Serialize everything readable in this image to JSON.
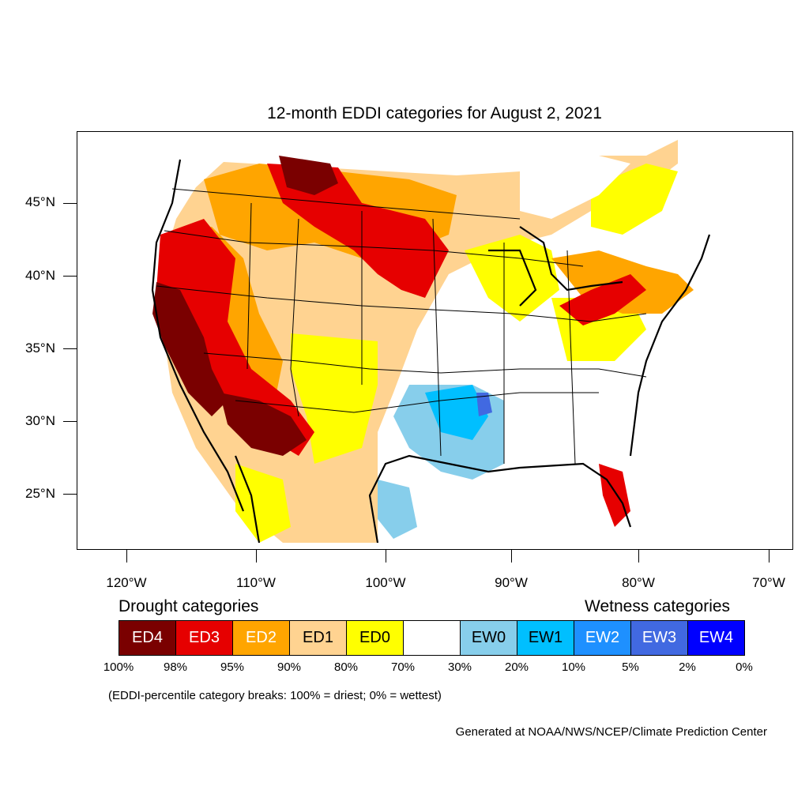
{
  "title": "12-month EDDI categories for August 2, 2021",
  "lat_labels": [
    "45°N",
    "40°N",
    "35°N",
    "30°N",
    "25°N"
  ],
  "lon_labels": [
    "120°W",
    "110°W",
    "100°W",
    "90°W",
    "80°W",
    "70°W"
  ],
  "legend": {
    "drought_title": "Drought categories",
    "wetness_title": "Wetness categories",
    "categories": [
      {
        "label": "ED4",
        "color": "#7a0000",
        "text_color": "#ffffff"
      },
      {
        "label": "ED3",
        "color": "#e60000",
        "text_color": "#ffffff"
      },
      {
        "label": "ED2",
        "color": "#ffa500",
        "text_color": "#ffffff"
      },
      {
        "label": "ED1",
        "color": "#ffd391",
        "text_color": "#000000"
      },
      {
        "label": "ED0",
        "color": "#ffff00",
        "text_color": "#000000"
      },
      {
        "label": "",
        "color": "#ffffff",
        "text_color": "#000000"
      },
      {
        "label": "EW0",
        "color": "#87ceeb",
        "text_color": "#000000"
      },
      {
        "label": "EW1",
        "color": "#00bfff",
        "text_color": "#000000"
      },
      {
        "label": "EW2",
        "color": "#1e90ff",
        "text_color": "#ffffff"
      },
      {
        "label": "EW3",
        "color": "#4169e1",
        "text_color": "#ffffff"
      },
      {
        "label": "EW4",
        "color": "#0000ff",
        "text_color": "#ffffff"
      }
    ],
    "breaks": [
      "100%",
      "98%",
      "95%",
      "90%",
      "80%",
      "70%",
      "30%",
      "20%",
      "10%",
      "5%",
      "2%",
      "0%"
    ]
  },
  "note": "(EDDI-percentile category breaks: 100% = driest; 0% = wettest)",
  "credit": "Generated at NOAA/NWS/NCEP/Climate Prediction Center"
}
